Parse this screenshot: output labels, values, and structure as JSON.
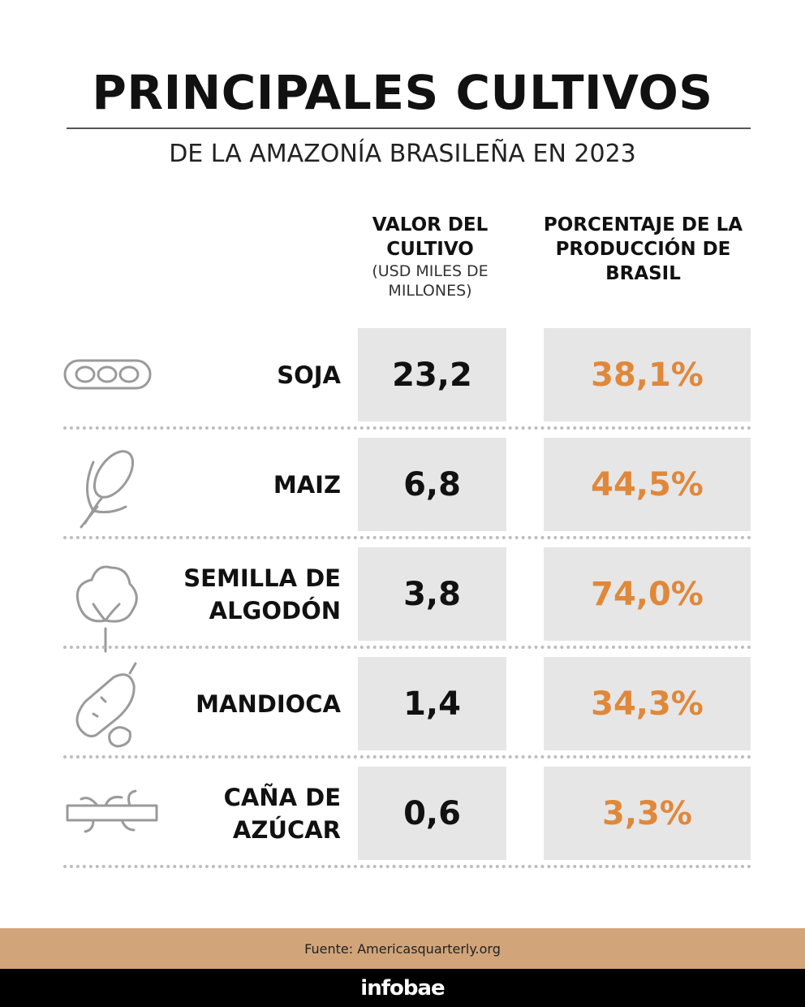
{
  "header": {
    "title": "PRINCIPALES CULTIVOS",
    "subtitle": "DE LA AMAZONÍA BRASILEÑA EN 2023"
  },
  "table": {
    "columns": [
      {
        "title": "VALOR DEL CULTIVO",
        "note": "(USD MILES DE MILLONES)"
      },
      {
        "title": "PORCENTAJE DE LA PRODUCCIÓN DE BRASIL"
      }
    ],
    "rows": [
      {
        "name": "SOJA",
        "value": "23,2",
        "share": "38,1%"
      },
      {
        "name": "MAIZ",
        "value": "6,8",
        "share": "44,5%"
      },
      {
        "name": "SEMILLA DE ALGODÓN",
        "value": "3,8",
        "share": "74,0%"
      },
      {
        "name": "MANDIOCA",
        "value": "1,4",
        "share": "34,3%"
      },
      {
        "name": "CAÑA DE AZÚCAR",
        "value": "0,6",
        "share": "3,3%"
      }
    ]
  },
  "footer": {
    "source": "Fuente: Americasquarterly.org",
    "brand": "infobae"
  }
}
